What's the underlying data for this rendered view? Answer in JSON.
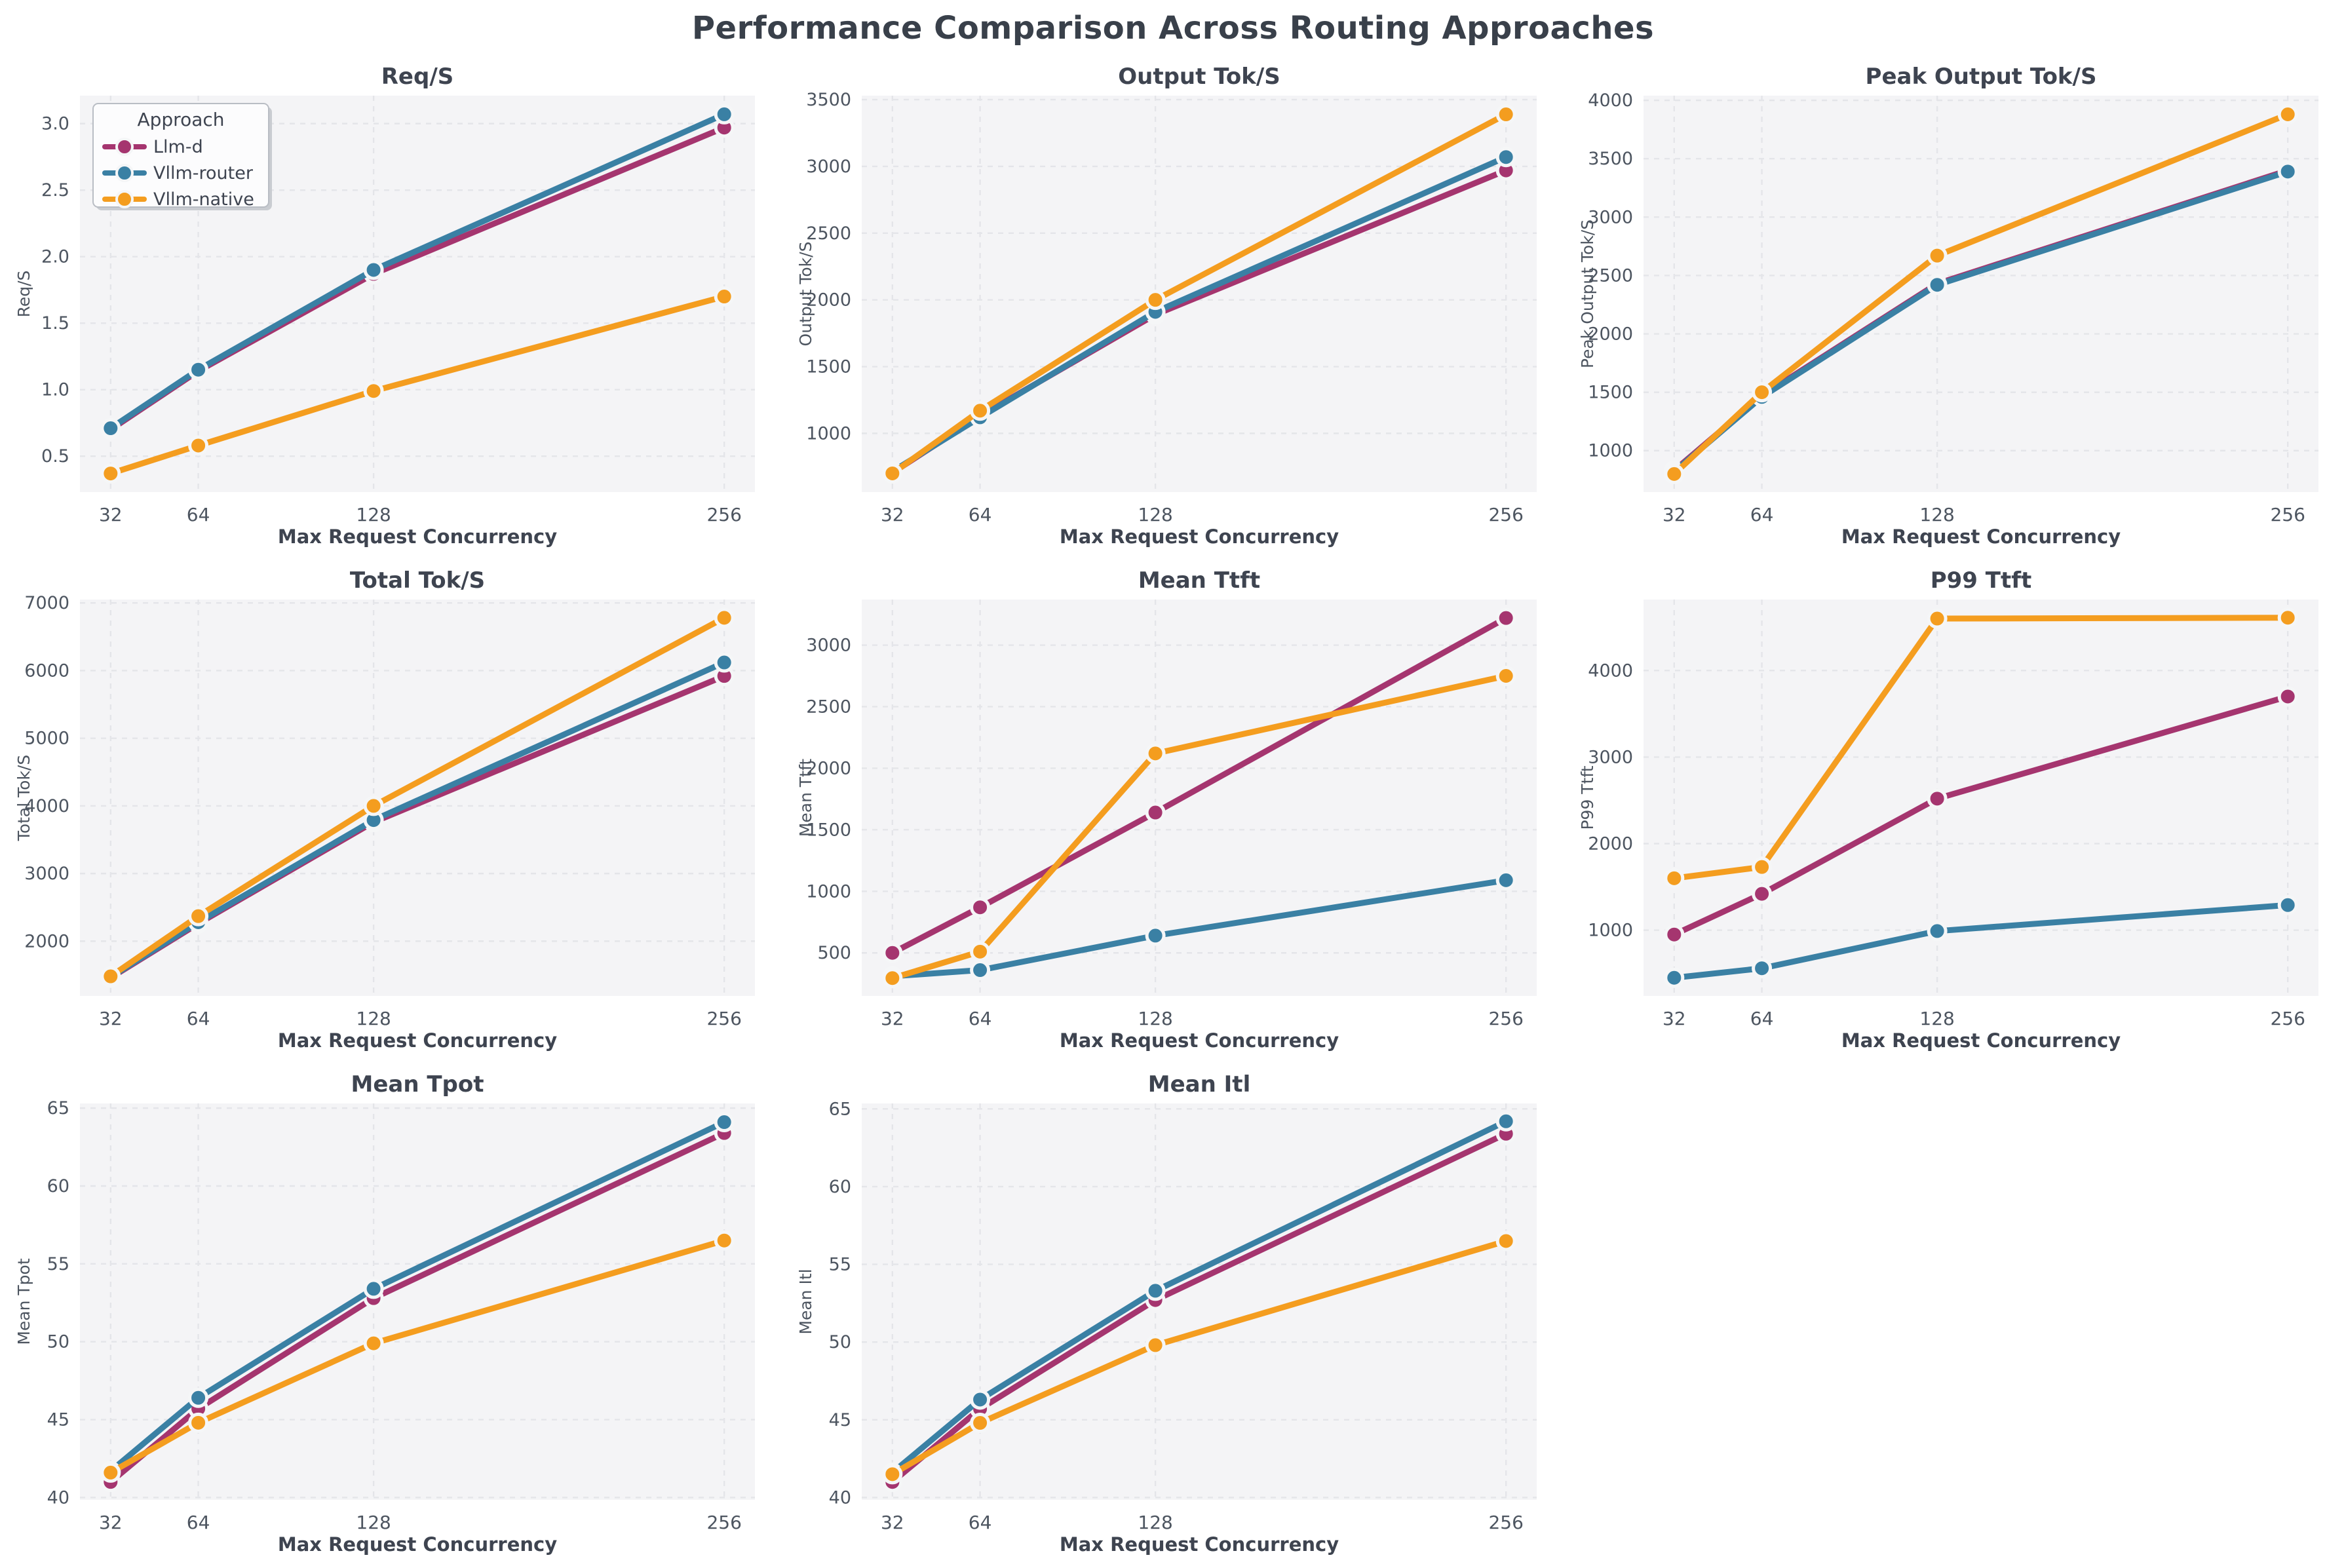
{
  "page_title": "Performance Comparison Across Routing Approaches",
  "legend": {
    "title": "Approach",
    "items": [
      {
        "label": "Llm-d",
        "color": "#A5356F"
      },
      {
        "label": "Vllm-router",
        "color": "#3A80A4"
      },
      {
        "label": "Vllm-native",
        "color": "#F49D1F"
      }
    ]
  },
  "x_axis": {
    "label": "Max Request Concurrency",
    "ticks": [
      32,
      64,
      128,
      256
    ],
    "tick_labels": [
      "32",
      "64",
      "128",
      "256"
    ]
  },
  "style": {
    "axes_bg": "#f4f4f6",
    "grid_color": "#e4e5e9",
    "title_color": "#3e4450",
    "tick_color": "#4d5560",
    "label_color": "#3e4450",
    "marker_ring": "#f5f6f7",
    "legend_bg": "#fcfcfd",
    "legend_border": "#b9bdc4"
  },
  "chart_data": [
    {
      "id": "req-s",
      "type": "line",
      "title": "Req/S",
      "ylabel": "Req/S",
      "xlabel": "Max Request Concurrency",
      "x": [
        32,
        64,
        128,
        256
      ],
      "ylim": [
        0.23,
        3.21
      ],
      "ytick_values": [
        0.5,
        1.0,
        1.5,
        2.0,
        2.5,
        3.0
      ],
      "ytick_labels": [
        "0.5",
        "1.0",
        "1.5",
        "2.0",
        "2.5",
        "3.0"
      ],
      "show_legend": true,
      "series": [
        {
          "name": "Llm-d",
          "color": "#A5356F",
          "values": [
            0.7,
            1.14,
            1.87,
            2.97
          ]
        },
        {
          "name": "Vllm-router",
          "color": "#3A80A4",
          "values": [
            0.71,
            1.15,
            1.9,
            3.07
          ]
        },
        {
          "name": "Vllm-native",
          "color": "#F49D1F",
          "values": [
            0.37,
            0.58,
            0.99,
            1.7
          ]
        }
      ]
    },
    {
      "id": "output-tok-s",
      "type": "line",
      "title": "Output Tok/S",
      "ylabel": "Output Tok/S",
      "xlabel": "Max Request Concurrency",
      "x": [
        32,
        64,
        128,
        256
      ],
      "ylim": [
        560,
        3530
      ],
      "ytick_values": [
        1000,
        1500,
        2000,
        2500,
        3000,
        3500
      ],
      "ytick_labels": [
        "1000",
        "1500",
        "2000",
        "2500",
        "3000",
        "3500"
      ],
      "show_legend": false,
      "series": [
        {
          "name": "Llm-d",
          "color": "#A5356F",
          "values": [
            705,
            1130,
            1890,
            2970
          ]
        },
        {
          "name": "Vllm-router",
          "color": "#3A80A4",
          "values": [
            715,
            1120,
            1910,
            3070
          ]
        },
        {
          "name": "Vllm-native",
          "color": "#F49D1F",
          "values": [
            700,
            1170,
            2000,
            3390
          ]
        }
      ]
    },
    {
      "id": "peak-output-tok-s",
      "type": "line",
      "title": "Peak Output Tok/S",
      "ylabel": "Peak Output Tok/S",
      "xlabel": "Max Request Concurrency",
      "x": [
        32,
        64,
        128,
        256
      ],
      "ylim": [
        645,
        4040
      ],
      "ytick_values": [
        1000,
        1500,
        2000,
        2500,
        3000,
        3500,
        4000
      ],
      "ytick_labels": [
        "1000",
        "1500",
        "2000",
        "2500",
        "3000",
        "3500",
        "4000"
      ],
      "show_legend": false,
      "series": [
        {
          "name": "Llm-d",
          "color": "#A5356F",
          "values": [
            830,
            1470,
            2430,
            3400
          ]
        },
        {
          "name": "Vllm-router",
          "color": "#3A80A4",
          "values": [
            820,
            1460,
            2420,
            3390
          ]
        },
        {
          "name": "Vllm-native",
          "color": "#F49D1F",
          "values": [
            800,
            1500,
            2670,
            3880
          ]
        }
      ]
    },
    {
      "id": "total-tok-s",
      "type": "line",
      "title": "Total Tok/S",
      "ylabel": "Total Tok/S",
      "xlabel": "Max Request Concurrency",
      "x": [
        32,
        64,
        128,
        256
      ],
      "ylim": [
        1190,
        7050
      ],
      "ytick_values": [
        2000,
        3000,
        4000,
        5000,
        6000,
        7000
      ],
      "ytick_labels": [
        "2000",
        "3000",
        "4000",
        "5000",
        "6000",
        "7000"
      ],
      "show_legend": false,
      "series": [
        {
          "name": "Llm-d",
          "color": "#A5356F",
          "values": [
            1460,
            2260,
            3760,
            5920
          ]
        },
        {
          "name": "Vllm-router",
          "color": "#3A80A4",
          "values": [
            1470,
            2280,
            3790,
            6120
          ]
        },
        {
          "name": "Vllm-native",
          "color": "#F49D1F",
          "values": [
            1480,
            2370,
            4000,
            6780
          ]
        }
      ]
    },
    {
      "id": "mean-ttft",
      "type": "line",
      "title": "Mean Ttft",
      "ylabel": "Mean Ttft",
      "xlabel": "Max Request Concurrency",
      "x": [
        32,
        64,
        128,
        256
      ],
      "ylim": [
        150,
        3370
      ],
      "ytick_values": [
        500,
        1000,
        1500,
        2000,
        2500,
        3000
      ],
      "ytick_labels": [
        "500",
        "1000",
        "1500",
        "2000",
        "2500",
        "3000"
      ],
      "show_legend": false,
      "series": [
        {
          "name": "Llm-d",
          "color": "#A5356F",
          "values": [
            500,
            870,
            1640,
            3220
          ]
        },
        {
          "name": "Vllm-router",
          "color": "#3A80A4",
          "values": [
            310,
            360,
            640,
            1090
          ]
        },
        {
          "name": "Vllm-native",
          "color": "#F49D1F",
          "values": [
            295,
            510,
            2120,
            2750
          ]
        }
      ]
    },
    {
      "id": "p99-ttft",
      "type": "line",
      "title": "P99 Ttft",
      "ylabel": "P99 Ttft",
      "xlabel": "Max Request Concurrency",
      "x": [
        32,
        64,
        128,
        256
      ],
      "ylim": [
        240,
        4820
      ],
      "ytick_values": [
        1000,
        2000,
        3000,
        4000
      ],
      "ytick_labels": [
        "1000",
        "2000",
        "3000",
        "4000"
      ],
      "show_legend": false,
      "series": [
        {
          "name": "Llm-d",
          "color": "#A5356F",
          "values": [
            950,
            1420,
            2520,
            3700
          ]
        },
        {
          "name": "Vllm-router",
          "color": "#3A80A4",
          "values": [
            450,
            560,
            990,
            1290
          ]
        },
        {
          "name": "Vllm-native",
          "color": "#F49D1F",
          "values": [
            1600,
            1730,
            4600,
            4610
          ]
        }
      ]
    },
    {
      "id": "mean-tpot",
      "type": "line",
      "title": "Mean Tpot",
      "ylabel": "Mean Tpot",
      "xlabel": "Max Request Concurrency",
      "x": [
        32,
        64,
        128,
        256
      ],
      "ylim": [
        39.85,
        65.3
      ],
      "ytick_values": [
        40,
        45,
        50,
        55,
        60,
        65
      ],
      "ytick_labels": [
        "40",
        "45",
        "50",
        "55",
        "60",
        "65"
      ],
      "show_legend": false,
      "series": [
        {
          "name": "Llm-d",
          "color": "#A5356F",
          "values": [
            41.0,
            45.7,
            52.8,
            63.4
          ]
        },
        {
          "name": "Vllm-router",
          "color": "#3A80A4",
          "values": [
            41.7,
            46.4,
            53.4,
            64.1
          ]
        },
        {
          "name": "Vllm-native",
          "color": "#F49D1F",
          "values": [
            41.6,
            44.8,
            49.9,
            56.5
          ]
        }
      ]
    },
    {
      "id": "mean-itl",
      "type": "line",
      "title": "Mean Itl",
      "ylabel": "Mean Itl",
      "xlabel": "Max Request Concurrency",
      "x": [
        32,
        64,
        128,
        256
      ],
      "ylim": [
        39.85,
        65.35
      ],
      "ytick_values": [
        40,
        45,
        50,
        55,
        60,
        65
      ],
      "ytick_labels": [
        "40",
        "45",
        "50",
        "55",
        "60",
        "65"
      ],
      "show_legend": false,
      "series": [
        {
          "name": "Llm-d",
          "color": "#A5356F",
          "values": [
            41.0,
            45.7,
            52.7,
            63.4
          ]
        },
        {
          "name": "Vllm-router",
          "color": "#3A80A4",
          "values": [
            41.6,
            46.3,
            53.3,
            64.2
          ]
        },
        {
          "name": "Vllm-native",
          "color": "#F49D1F",
          "values": [
            41.5,
            44.8,
            49.8,
            56.5
          ]
        }
      ]
    }
  ]
}
